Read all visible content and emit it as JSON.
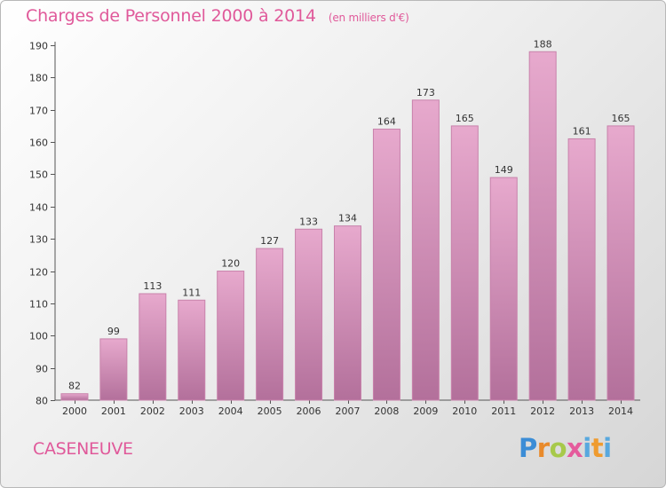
{
  "title": "Charges de Personnel 2000 à 2014",
  "subtitle": "(en milliers d'€)",
  "commune": "CASENEUVE",
  "logo": {
    "p": "P",
    "r": "r",
    "o": "o",
    "x": "x",
    "i": "i",
    "t": "t",
    "i2": "i"
  },
  "colors": {
    "title": "#e0599a",
    "bar_top": "#e7a9cd",
    "bar_bottom": "#b3709b",
    "bar_edge": "#c882ab"
  },
  "chart_data": {
    "type": "bar",
    "categories": [
      "2000",
      "2001",
      "2002",
      "2003",
      "2004",
      "2005",
      "2006",
      "2007",
      "2008",
      "2009",
      "2010",
      "2011",
      "2012",
      "2013",
      "2014"
    ],
    "values": [
      82,
      99,
      113,
      111,
      120,
      127,
      133,
      134,
      164,
      173,
      165,
      149,
      188,
      161,
      165
    ],
    "ylim": [
      80,
      190
    ],
    "yticks": [
      80,
      90,
      100,
      110,
      120,
      130,
      140,
      150,
      160,
      170,
      180,
      190
    ],
    "grid": false,
    "data_labels": true
  }
}
